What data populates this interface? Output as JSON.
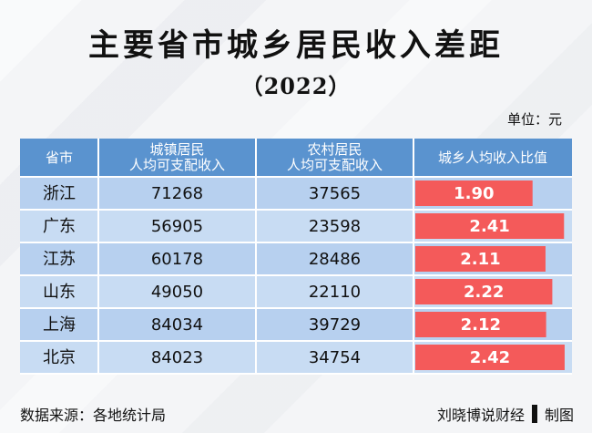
{
  "page": {
    "title": "主要省市城乡居民收入差距",
    "subtitle": "（2022）",
    "unit": "单位：元"
  },
  "colors": {
    "background": "#f4f5f7",
    "header_bg": "#5a93cf",
    "header_text": "#ffffff",
    "row_bg_1": "#b7d0ef",
    "row_bg_2": "#c8dcf3",
    "grid": "#ffffff",
    "bar": "#f45a5a",
    "bar_text": "#ffffff"
  },
  "chart_data": {
    "type": "table",
    "title": "主要省市城乡居民收入差距",
    "subtitle": "（2022）",
    "unit": "单位：元",
    "columns": [
      "省市",
      "城镇居民\n人均可支配收入",
      "农村居民\n人均可支配收入",
      "城乡人均收入比值"
    ],
    "rows": [
      {
        "region": "浙江",
        "urban": "71268",
        "rural": "37565",
        "ratio": 1.9,
        "ratio_label": "1.90"
      },
      {
        "region": "广东",
        "urban": "56905",
        "rural": "23598",
        "ratio": 2.41,
        "ratio_label": "2.41"
      },
      {
        "region": "江苏",
        "urban": "60178",
        "rural": "28486",
        "ratio": 2.11,
        "ratio_label": "2.11"
      },
      {
        "region": "山东",
        "urban": "49050",
        "rural": "22110",
        "ratio": 2.22,
        "ratio_label": "2.22"
      },
      {
        "region": "上海",
        "urban": "84034",
        "rural": "39729",
        "ratio": 2.12,
        "ratio_label": "2.12"
      },
      {
        "region": "北京",
        "urban": "84023",
        "rural": "34754",
        "ratio": 2.42,
        "ratio_label": "2.42"
      }
    ],
    "ratio_max": 2.45
  },
  "footer": {
    "source": "数据来源：各地统计局",
    "brand": "刘晓博说财经",
    "right_label": "制图"
  }
}
